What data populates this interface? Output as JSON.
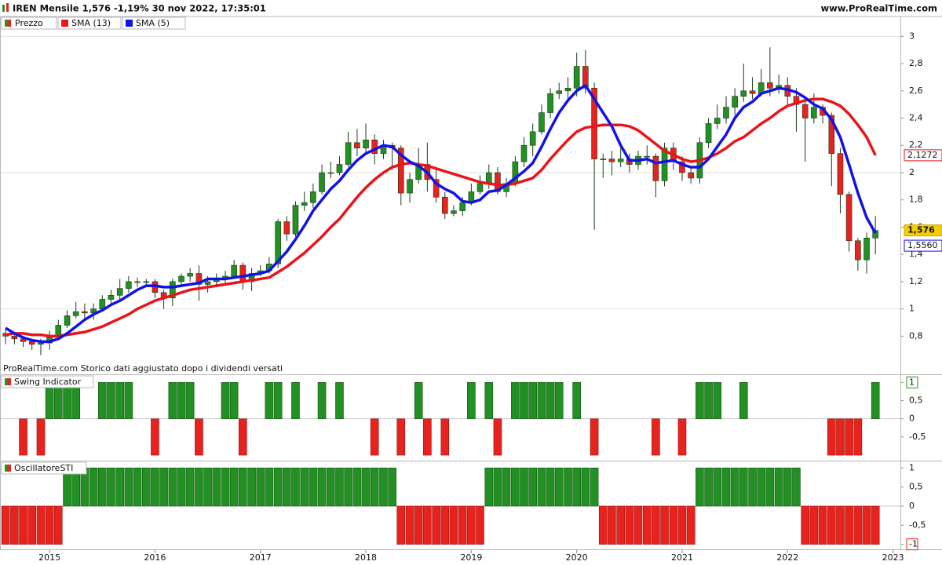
{
  "chart_data": [
    {
      "type": "candlestick",
      "title": "IREN Mensile 1,576 -1,19% 30 nov 2022, 17:35:01",
      "site": "www.ProRealTime.com",
      "note": "ProRealTime.com  Storico dati aggiustato dopo i dividendi versati",
      "xlim": [
        2014.53,
        2023.07
      ],
      "xticks": [
        2015,
        2016,
        2017,
        2018,
        2019,
        2020,
        2021,
        2022,
        2023
      ],
      "ylim": [
        0.52,
        3.14
      ],
      "yticks": [
        3,
        {
          "value": 2.8,
          "label": "2,8"
        },
        {
          "value": 2.6,
          "label": "2,6"
        },
        {
          "value": 2.4,
          "label": "2,4"
        },
        {
          "value": 2.2,
          "label": "2,2"
        },
        2,
        {
          "value": 1.8,
          "label": "1,8"
        },
        {
          "value": 1.6,
          "label": "1,6"
        },
        {
          "value": 1.4,
          "label": "1,4"
        },
        {
          "value": 1.2,
          "label": "1,2"
        },
        1,
        {
          "value": 0.8,
          "label": "0,8"
        }
      ],
      "grid": true,
      "x": [
        2014.583,
        2014.667,
        2014.75,
        2014.833,
        2014.917,
        2015,
        2015.083,
        2015.167,
        2015.25,
        2015.333,
        2015.417,
        2015.5,
        2015.583,
        2015.667,
        2015.75,
        2015.833,
        2015.917,
        2016,
        2016.083,
        2016.167,
        2016.25,
        2016.333,
        2016.417,
        2016.5,
        2016.583,
        2016.667,
        2016.75,
        2016.833,
        2016.917,
        2017,
        2017.083,
        2017.167,
        2017.25,
        2017.333,
        2017.417,
        2017.5,
        2017.583,
        2017.667,
        2017.75,
        2017.833,
        2017.917,
        2018,
        2018.083,
        2018.167,
        2018.25,
        2018.333,
        2018.417,
        2018.5,
        2018.583,
        2018.667,
        2018.75,
        2018.833,
        2018.917,
        2019,
        2019.083,
        2019.167,
        2019.25,
        2019.333,
        2019.417,
        2019.5,
        2019.583,
        2019.667,
        2019.75,
        2019.833,
        2019.917,
        2020,
        2020.083,
        2020.167,
        2020.25,
        2020.333,
        2020.417,
        2020.5,
        2020.583,
        2020.667,
        2020.75,
        2020.833,
        2020.917,
        2021,
        2021.083,
        2021.167,
        2021.25,
        2021.333,
        2021.417,
        2021.5,
        2021.583,
        2021.667,
        2021.75,
        2021.833,
        2021.917,
        2022,
        2022.083,
        2022.167,
        2022.25,
        2022.333,
        2022.417,
        2022.5,
        2022.583,
        2022.667,
        2022.75,
        2022.833
      ],
      "series": [
        {
          "name": "Prezzo",
          "up_color": "#239023",
          "down_color": "#e8221c",
          "last_label": "1,576",
          "open": [
            0.82,
            0.8,
            0.78,
            0.76,
            0.74,
            0.75,
            0.8,
            0.88,
            0.95,
            0.98,
            0.97,
            1.0,
            1.07,
            1.1,
            1.15,
            1.2,
            1.2,
            1.2,
            1.12,
            1.08,
            1.2,
            1.24,
            1.26,
            1.18,
            1.2,
            1.22,
            1.24,
            1.32,
            1.2,
            1.26,
            1.28,
            1.33,
            1.64,
            1.55,
            1.76,
            1.78,
            1.86,
            2.0,
            2.0,
            2.06,
            2.22,
            2.18,
            2.24,
            2.14,
            2.2,
            2.18,
            1.85,
            1.95,
            2.06,
            1.95,
            1.82,
            1.7,
            1.72,
            1.78,
            1.86,
            1.92,
            2.0,
            1.86,
            1.92,
            2.08,
            2.2,
            2.3,
            2.44,
            2.58,
            2.6,
            2.62,
            2.78,
            2.62,
            2.1,
            2.1,
            2.08,
            2.1,
            2.06,
            2.12,
            2.12,
            1.94,
            2.18,
            2.08,
            2.0,
            1.96,
            2.22,
            2.36,
            2.4,
            2.48,
            2.56,
            2.6,
            2.58,
            2.66,
            2.62,
            2.64,
            2.56,
            2.5,
            2.4,
            2.48,
            2.42,
            2.14,
            1.84,
            1.5,
            1.36,
            1.52
          ],
          "high": [
            0.86,
            0.83,
            0.8,
            0.78,
            0.78,
            0.84,
            0.92,
            0.99,
            1.05,
            1.04,
            1.04,
            1.1,
            1.14,
            1.22,
            1.24,
            1.23,
            1.22,
            1.22,
            1.14,
            1.22,
            1.26,
            1.3,
            1.32,
            1.24,
            1.26,
            1.28,
            1.36,
            1.34,
            1.3,
            1.32,
            1.38,
            1.66,
            1.68,
            1.79,
            1.86,
            1.92,
            2.06,
            2.08,
            2.12,
            2.3,
            2.32,
            2.36,
            2.28,
            2.24,
            2.22,
            2.2,
            2.0,
            2.18,
            2.22,
            2.04,
            1.86,
            1.76,
            1.82,
            1.92,
            1.98,
            2.06,
            2.04,
            1.96,
            2.12,
            2.26,
            2.36,
            2.5,
            2.62,
            2.66,
            2.7,
            2.88,
            2.9,
            2.66,
            2.14,
            2.16,
            2.18,
            2.14,
            2.16,
            2.2,
            2.14,
            2.22,
            2.22,
            2.12,
            2.04,
            2.26,
            2.4,
            2.5,
            2.56,
            2.62,
            2.8,
            2.7,
            2.76,
            2.92,
            2.72,
            2.7,
            2.62,
            2.56,
            2.58,
            2.5,
            2.44,
            2.18,
            1.86,
            1.52,
            1.56,
            1.68
          ],
          "low": [
            0.74,
            0.74,
            0.72,
            0.7,
            0.66,
            0.7,
            0.78,
            0.86,
            0.93,
            0.92,
            0.92,
            0.98,
            1.04,
            1.06,
            1.12,
            1.16,
            1.17,
            1.08,
            1.0,
            1.02,
            1.18,
            1.2,
            1.06,
            1.12,
            1.16,
            1.18,
            1.22,
            1.14,
            1.13,
            1.24,
            1.26,
            1.3,
            1.5,
            1.53,
            1.72,
            1.74,
            1.84,
            1.96,
            1.98,
            2.04,
            2.12,
            2.14,
            2.06,
            2.1,
            2.02,
            1.76,
            1.78,
            1.92,
            1.86,
            1.78,
            1.66,
            1.68,
            1.68,
            1.76,
            1.84,
            1.88,
            1.84,
            1.82,
            1.9,
            2.04,
            2.12,
            2.28,
            2.4,
            2.54,
            2.52,
            2.56,
            2.58,
            1.58,
            1.96,
            1.98,
            2.04,
            2.0,
            2.02,
            2.06,
            1.82,
            1.9,
            2.02,
            1.94,
            1.92,
            1.92,
            2.18,
            2.32,
            2.36,
            2.42,
            2.52,
            2.54,
            2.56,
            2.56,
            2.58,
            2.5,
            2.3,
            2.08,
            2.36,
            2.36,
            1.9,
            1.7,
            1.42,
            1.28,
            1.26,
            1.4
          ],
          "close": [
            0.8,
            0.78,
            0.76,
            0.74,
            0.75,
            0.8,
            0.88,
            0.95,
            0.98,
            0.97,
            1.0,
            1.07,
            1.1,
            1.15,
            1.2,
            1.2,
            1.2,
            1.12,
            1.08,
            1.2,
            1.24,
            1.26,
            1.18,
            1.2,
            1.22,
            1.24,
            1.32,
            1.2,
            1.26,
            1.28,
            1.33,
            1.64,
            1.55,
            1.76,
            1.78,
            1.86,
            2.0,
            2.0,
            2.06,
            2.22,
            2.18,
            2.24,
            2.14,
            2.2,
            2.18,
            1.85,
            1.95,
            2.06,
            1.95,
            1.82,
            1.7,
            1.72,
            1.78,
            1.86,
            1.92,
            2.0,
            1.86,
            1.92,
            2.08,
            2.2,
            2.3,
            2.44,
            2.58,
            2.6,
            2.62,
            2.78,
            2.62,
            2.1,
            2.1,
            2.08,
            2.1,
            2.06,
            2.12,
            2.12,
            1.94,
            2.18,
            2.08,
            2.0,
            1.96,
            2.22,
            2.36,
            2.4,
            2.48,
            2.56,
            2.6,
            2.58,
            2.66,
            2.62,
            2.64,
            2.56,
            2.5,
            2.4,
            2.48,
            2.42,
            2.14,
            1.84,
            1.5,
            1.36,
            1.52,
            1.576
          ]
        },
        {
          "name": "SMA (13)",
          "color": "#e8151b",
          "last_label": "2,1272",
          "values": [
            0.81,
            0.82,
            0.82,
            0.81,
            0.81,
            0.8,
            0.8,
            0.81,
            0.82,
            0.83,
            0.85,
            0.87,
            0.9,
            0.93,
            0.96,
            1.0,
            1.03,
            1.06,
            1.08,
            1.1,
            1.12,
            1.14,
            1.15,
            1.16,
            1.17,
            1.18,
            1.19,
            1.2,
            1.21,
            1.22,
            1.23,
            1.27,
            1.31,
            1.36,
            1.41,
            1.47,
            1.53,
            1.6,
            1.66,
            1.74,
            1.82,
            1.89,
            1.95,
            2.0,
            2.04,
            2.06,
            2.07,
            2.06,
            2.05,
            2.03,
            2.01,
            1.99,
            1.97,
            1.95,
            1.93,
            1.92,
            1.91,
            1.91,
            1.92,
            1.94,
            1.96,
            2.02,
            2.1,
            2.17,
            2.24,
            2.3,
            2.33,
            2.34,
            2.35,
            2.35,
            2.35,
            2.34,
            2.31,
            2.26,
            2.21,
            2.16,
            2.13,
            2.1,
            2.08,
            2.09,
            2.11,
            2.14,
            2.18,
            2.23,
            2.26,
            2.31,
            2.36,
            2.4,
            2.45,
            2.49,
            2.51,
            2.53,
            2.54,
            2.54,
            2.52,
            2.49,
            2.43,
            2.35,
            2.26,
            2.1272
          ]
        },
        {
          "name": "SMA (5)",
          "color": "#1212e6",
          "last_label": "1,5560",
          "values": [
            0.86,
            0.82,
            0.79,
            0.77,
            0.76,
            0.76,
            0.78,
            0.82,
            0.87,
            0.92,
            0.96,
            0.99,
            1.03,
            1.06,
            1.1,
            1.14,
            1.17,
            1.17,
            1.16,
            1.16,
            1.17,
            1.18,
            1.19,
            1.22,
            1.22,
            1.22,
            1.23,
            1.24,
            1.25,
            1.26,
            1.28,
            1.35,
            1.42,
            1.51,
            1.61,
            1.72,
            1.8,
            1.88,
            1.94,
            2.02,
            2.09,
            2.14,
            2.17,
            2.2,
            2.19,
            2.13,
            2.08,
            2.05,
            2.0,
            1.92,
            1.88,
            1.85,
            1.79,
            1.78,
            1.8,
            1.86,
            1.87,
            1.91,
            1.96,
            2.01,
            2.07,
            2.19,
            2.32,
            2.44,
            2.53,
            2.6,
            2.64,
            2.54,
            2.44,
            2.34,
            2.2,
            2.09,
            2.09,
            2.1,
            2.07,
            2.08,
            2.09,
            2.06,
            2.04,
            2.04,
            2.1,
            2.19,
            2.28,
            2.4,
            2.48,
            2.52,
            2.58,
            2.6,
            2.62,
            2.61,
            2.59,
            2.55,
            2.5,
            2.47,
            2.39,
            2.26,
            2.06,
            1.85,
            1.67,
            1.556
          ]
        }
      ]
    },
    {
      "type": "bar",
      "title": "Swing Indicator",
      "ylim": [
        -1.15,
        1.2
      ],
      "yticks": [
        1,
        {
          "value": 0.5,
          "label": "0,5"
        },
        0,
        {
          "value": -0.5,
          "label": "-0,5"
        }
      ],
      "series": [
        {
          "up_color": "#239023",
          "down_color": "#e8221c",
          "values": [
            0,
            0,
            -1,
            0,
            -1,
            1,
            1,
            1,
            1,
            0,
            0,
            1,
            1,
            1,
            1,
            0,
            0,
            -1,
            0,
            1,
            1,
            1,
            -1,
            0,
            0,
            1,
            1,
            -1,
            0,
            0,
            1,
            1,
            0,
            1,
            0,
            0,
            1,
            0,
            1,
            0,
            0,
            0,
            -1,
            0,
            0,
            -1,
            0,
            1,
            -1,
            0,
            -1,
            0,
            0,
            1,
            0,
            1,
            -1,
            0,
            1,
            1,
            1,
            1,
            1,
            1,
            0,
            1,
            0,
            -1,
            0,
            0,
            0,
            0,
            0,
            0,
            -1,
            0,
            0,
            -1,
            0,
            1,
            1,
            1,
            0,
            0,
            1,
            0,
            0,
            0,
            0,
            0,
            0,
            0,
            0,
            0,
            -1,
            -1,
            -1,
            -1,
            0,
            1
          ]
        }
      ]
    },
    {
      "type": "bar",
      "title": "OscillatoreSTI",
      "ylim": [
        -1.13,
        1.17
      ],
      "yticks": [
        1,
        {
          "value": 0.5,
          "label": "0,5"
        },
        0,
        {
          "value": -0.5,
          "label": "-0,5"
        },
        -1
      ],
      "series": [
        {
          "up_color": "#239023",
          "down_color": "#e8221c",
          "values": [
            -1,
            -1,
            -1,
            -1,
            -1,
            -1,
            -1,
            1,
            1,
            1,
            1,
            1,
            1,
            1,
            1,
            1,
            1,
            1,
            1,
            1,
            1,
            1,
            1,
            1,
            1,
            1,
            1,
            1,
            1,
            1,
            1,
            1,
            1,
            1,
            1,
            1,
            1,
            1,
            1,
            1,
            1,
            1,
            1,
            1,
            1,
            -1,
            -1,
            -1,
            -1,
            -1,
            -1,
            -1,
            -1,
            -1,
            -1,
            1,
            1,
            1,
            1,
            1,
            1,
            1,
            1,
            1,
            1,
            1,
            1,
            1,
            -1,
            -1,
            -1,
            -1,
            -1,
            -1,
            -1,
            -1,
            -1,
            -1,
            -1,
            1,
            1,
            1,
            1,
            1,
            1,
            1,
            1,
            1,
            1,
            1,
            1,
            -1,
            -1,
            -1,
            -1,
            -1,
            -1,
            -1,
            -1,
            -1
          ]
        }
      ]
    }
  ]
}
